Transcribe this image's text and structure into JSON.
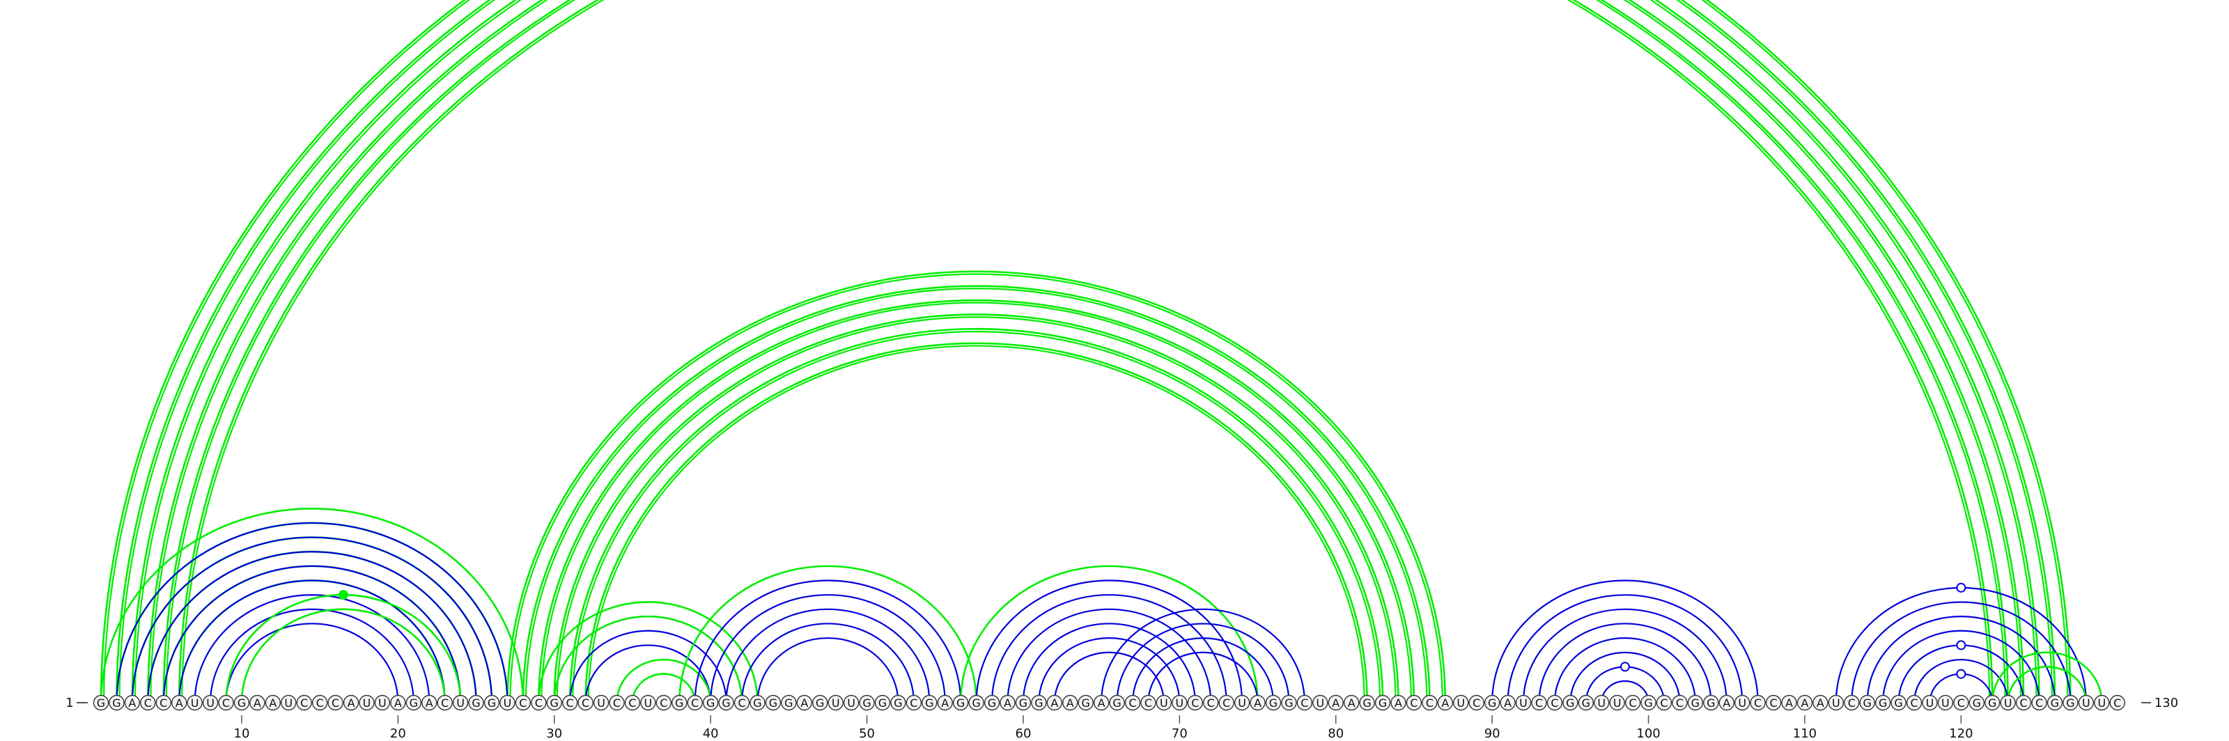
{
  "sequence": "GGACCAUUCGAAUCCCAUUAGACUGGUCCGCCUCCUCGCGGCGGGAGUUGGGCGAGGGAGGAAGAGCCUUCCCUAGGCUAAGGACCAUCGAUCCGGUUCGCCGGAUCCAAAUCGGGCUUCGGUCCGGUUC",
  "length": 130,
  "start_label": "1",
  "end_label": "130",
  "tick_labels": [
    "10",
    "20",
    "30",
    "40",
    "50",
    "60",
    "70",
    "80",
    "90",
    "100",
    "110",
    "120"
  ],
  "colors": {
    "outer_arcs": "#00ee00",
    "inner_arcs": "#0000dd",
    "nucleotide_stroke": "#333333",
    "text": "#111111"
  },
  "arc_groups": [
    {
      "color": "green",
      "pairs": [
        [
          1,
          127
        ],
        [
          2,
          126
        ],
        [
          3,
          125
        ],
        [
          4,
          124
        ],
        [
          5,
          123
        ],
        [
          6,
          122
        ]
      ],
      "note_double": true
    },
    {
      "color": "green",
      "pairs": [
        [
          27,
          87
        ],
        [
          28,
          86
        ],
        [
          29,
          85
        ],
        [
          30,
          84
        ],
        [
          31,
          83
        ],
        [
          32,
          82
        ]
      ],
      "note_double": true
    },
    {
      "color": "green",
      "pairs": [
        [
          1,
          28
        ],
        [
          2,
          27
        ],
        [
          3,
          26
        ],
        [
          4,
          25
        ],
        [
          5,
          24
        ],
        [
          6,
          23
        ]
      ]
    },
    {
      "color": "blue",
      "pairs": [
        [
          2,
          27
        ],
        [
          3,
          26
        ],
        [
          4,
          25
        ],
        [
          5,
          24
        ],
        [
          6,
          23
        ],
        [
          7,
          22
        ],
        [
          8,
          21
        ],
        [
          9,
          20
        ]
      ]
    },
    {
      "color": "green",
      "pairs": [
        [
          9,
          24
        ],
        [
          10,
          23
        ]
      ]
    },
    {
      "color": "blue",
      "pairs": [
        [
          30,
          42
        ],
        [
          31,
          41
        ],
        [
          32,
          40
        ]
      ]
    },
    {
      "color": "green",
      "pairs": [
        [
          29,
          43
        ],
        [
          30,
          42
        ]
      ]
    },
    {
      "color": "green",
      "pairs": [
        [
          34,
          40
        ],
        [
          35,
          39
        ]
      ]
    },
    {
      "color": "green",
      "pairs": [
        [
          38,
          57
        ]
      ]
    },
    {
      "color": "blue",
      "pairs": [
        [
          39,
          56
        ],
        [
          40,
          55
        ],
        [
          41,
          54
        ],
        [
          42,
          53
        ],
        [
          43,
          52
        ]
      ]
    },
    {
      "color": "green",
      "pairs": [
        [
          56,
          75
        ]
      ]
    },
    {
      "color": "blue",
      "pairs": [
        [
          57,
          74
        ],
        [
          58,
          73
        ],
        [
          59,
          72
        ],
        [
          60,
          71
        ],
        [
          61,
          70
        ],
        [
          62,
          69
        ]
      ]
    },
    {
      "color": "blue",
      "pairs": [
        [
          65,
          78
        ],
        [
          66,
          77
        ],
        [
          67,
          76
        ],
        [
          68,
          75
        ]
      ]
    },
    {
      "color": "blue",
      "pairs": [
        [
          90,
          107
        ],
        [
          91,
          106
        ],
        [
          92,
          105
        ],
        [
          93,
          104
        ],
        [
          94,
          103
        ],
        [
          95,
          102
        ],
        [
          96,
          101
        ],
        [
          97,
          100
        ]
      ]
    },
    {
      "color": "blue",
      "pairs": [
        [
          112,
          128
        ],
        [
          113,
          127
        ],
        [
          114,
          126
        ],
        [
          115,
          125
        ],
        [
          116,
          124
        ],
        [
          117,
          123
        ],
        [
          118,
          122
        ]
      ]
    },
    {
      "color": "green",
      "pairs": [
        [
          122,
          129
        ],
        [
          123,
          128
        ]
      ]
    }
  ],
  "markers": [
    {
      "kind": "open",
      "color": "green",
      "arc": [
        1,
        129
      ]
    },
    {
      "kind": "filled",
      "color": "green",
      "arc": [
        9,
        24
      ]
    },
    {
      "kind": "open",
      "color": "blue",
      "arc": [
        96,
        101
      ]
    },
    {
      "kind": "open",
      "color": "blue",
      "arc": [
        118,
        122
      ]
    },
    {
      "kind": "open",
      "color": "blue",
      "arc": [
        116,
        124
      ]
    },
    {
      "kind": "open",
      "color": "blue",
      "arc": [
        112,
        128
      ]
    }
  ]
}
